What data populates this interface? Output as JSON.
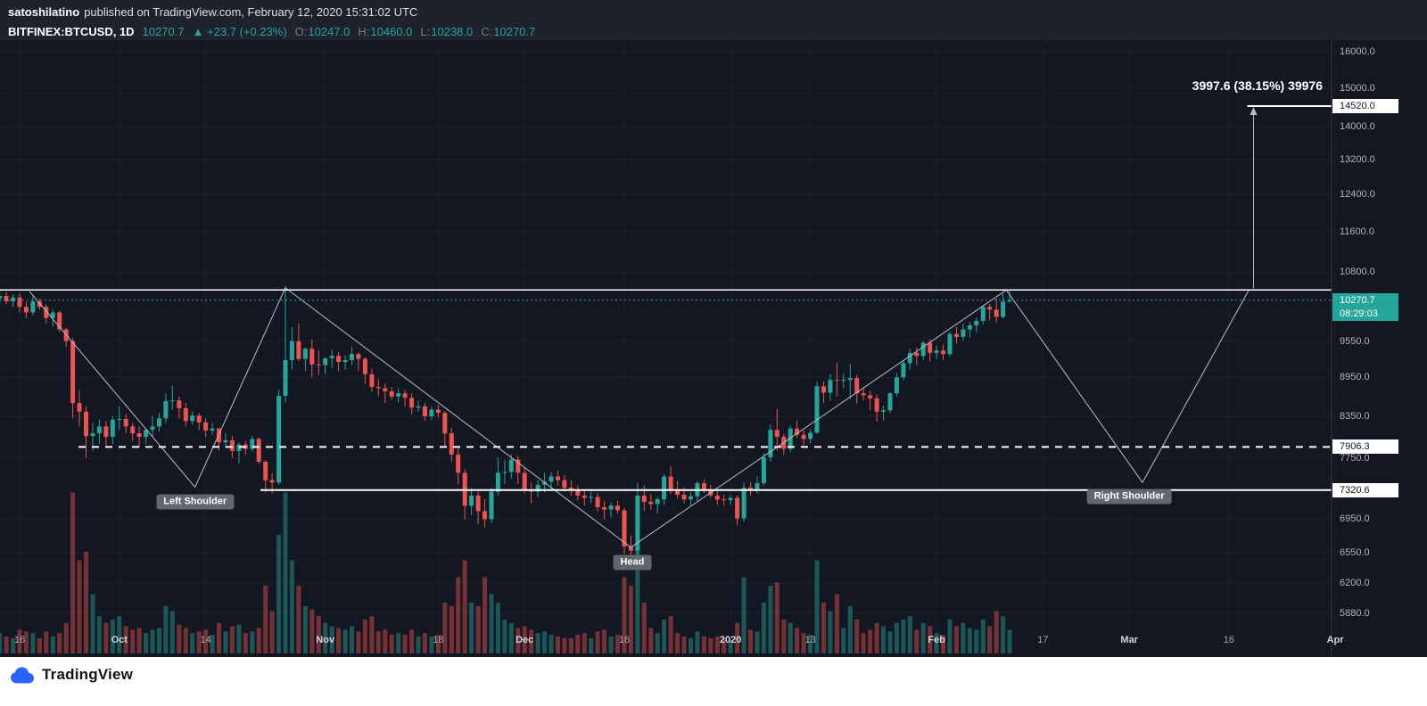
{
  "meta": {
    "publisher": "satoshilatino",
    "published_text": "published on TradingView.com, February 12, 2020 15:31:02 UTC"
  },
  "symbol_bar": {
    "symbol_tf": "BITFINEX:BTCUSD, 1D",
    "last_price": "10270.7",
    "change": "▲ +23.7 (+0.23%)",
    "ohlc": [
      {
        "label": "O:",
        "value": "10247.0"
      },
      {
        "label": "H:",
        "value": "10460.0"
      },
      {
        "label": "L:",
        "value": "10238.0"
      },
      {
        "label": "C:",
        "value": "10270.7"
      }
    ]
  },
  "colors": {
    "bg": "#131722",
    "panel": "#1e222d",
    "up": "#26a69a",
    "down": "#ef5350",
    "up_volume": "rgba(38,166,154,0.45)",
    "down_volume": "rgba(239,83,80,0.45)",
    "white": "#ffffff",
    "trend": "#b8bdc9",
    "grid": "rgba(255,255,255,0.04)",
    "axis_text": "#b2b5be",
    "brand_blue": "#2962ff"
  },
  "price_axis": {
    "ticks": [
      {
        "label": "16000.0",
        "price": 16000
      },
      {
        "label": "15000.0",
        "price": 15000
      },
      {
        "label": "14000.0",
        "price": 14000
      },
      {
        "label": "13200.0",
        "price": 13200
      },
      {
        "label": "12400.0",
        "price": 12400
      },
      {
        "label": "11600.0",
        "price": 11600
      },
      {
        "label": "10800.0",
        "price": 10800
      },
      {
        "label": "9550.0",
        "price": 9550
      },
      {
        "label": "8950.0",
        "price": 8950
      },
      {
        "label": "8350.0",
        "price": 8350
      },
      {
        "label": "7750.0",
        "price": 7750
      },
      {
        "label": "6950.0",
        "price": 6950
      },
      {
        "label": "6550.0",
        "price": 6550
      },
      {
        "label": "6200.0",
        "price": 6200
      },
      {
        "label": "5880.0",
        "price": 5880
      }
    ],
    "special": {
      "target": {
        "label": "14520.0",
        "price": 14520
      },
      "last": {
        "label": "10270.7",
        "price": 10270.7
      },
      "countdown": {
        "label": "08:29:03"
      },
      "pivot": {
        "label": "7906.3",
        "price": 7906.3
      },
      "support": {
        "label": "7320.6",
        "price": 7320.6
      }
    }
  },
  "time_axis": {
    "labels": [
      {
        "text": "16",
        "day": 3
      },
      {
        "text": "Oct",
        "day": 18
      },
      {
        "text": "14",
        "day": 31
      },
      {
        "text": "Nov",
        "day": 49
      },
      {
        "text": "18",
        "day": 66
      },
      {
        "text": "Dec",
        "day": 79
      },
      {
        "text": "16",
        "day": 94
      },
      {
        "text": "2020",
        "day": 110
      },
      {
        "text": "13",
        "day": 122
      },
      {
        "text": "Feb",
        "day": 141
      },
      {
        "text": "17",
        "day": 157
      },
      {
        "text": "Mar",
        "day": 170
      },
      {
        "text": "16",
        "day": 185
      },
      {
        "text": "Apr",
        "day": 201
      }
    ]
  },
  "annotations": {
    "left_shoulder": {
      "text": "Left Shoulder",
      "day": 29.4,
      "price": 7170
    },
    "head": {
      "text": "Head",
      "day": 95.2,
      "price": 6430
    },
    "right_shoulder": {
      "text": "Right Shoulder",
      "day": 170,
      "price": 7240
    },
    "measured_move": "3997.6 (38.15%) 39976",
    "neckline_price": 10460,
    "pivot_price": 7906.3,
    "support_price": 7320.6,
    "target_price": 14520,
    "arrow_day": 188.7,
    "zigzag": [
      {
        "day": 4.5,
        "price": 10430
      },
      {
        "day": 29.4,
        "price": 7360
      },
      {
        "day": 43,
        "price": 10500
      },
      {
        "day": 95,
        "price": 6610
      },
      {
        "day": 151.5,
        "price": 10460
      },
      {
        "day": 172,
        "price": 7420
      },
      {
        "day": 188,
        "price": 10460
      }
    ]
  },
  "chart_data": {
    "type": "candlestick",
    "symbol": "BITFINEX:BTCUSD",
    "interval": "1D",
    "scale": "logarithmic",
    "start_date": "2019-09-13",
    "end_date": "2020-02-12",
    "columns": [
      "open",
      "high",
      "low",
      "close",
      "volume_rel"
    ],
    "price_axis_range": [
      5880,
      16000
    ],
    "candles": [
      [
        10300,
        10450,
        10150,
        10350,
        12
      ],
      [
        10350,
        10420,
        10200,
        10250,
        10
      ],
      [
        10250,
        10380,
        10150,
        10320,
        9
      ],
      [
        10320,
        10400,
        10050,
        10150,
        14
      ],
      [
        10150,
        10250,
        9950,
        10050,
        13
      ],
      [
        10050,
        10350,
        10000,
        10250,
        12
      ],
      [
        10250,
        10300,
        10100,
        10150,
        9
      ],
      [
        10150,
        10200,
        9850,
        9950,
        13
      ],
      [
        9950,
        10100,
        9800,
        10050,
        10
      ],
      [
        10050,
        10080,
        9700,
        9750,
        12
      ],
      [
        9750,
        9780,
        9450,
        9550,
        18
      ],
      [
        9550,
        9600,
        8320,
        8550,
        95
      ],
      [
        8550,
        8750,
        8200,
        8420,
        55
      ],
      [
        8420,
        8500,
        7750,
        8060,
        60
      ],
      [
        8060,
        8250,
        7850,
        8100,
        35
      ],
      [
        8100,
        8300,
        7950,
        8200,
        22
      ],
      [
        8200,
        8280,
        7900,
        8050,
        18
      ],
      [
        8050,
        8350,
        7950,
        8300,
        20
      ],
      [
        8300,
        8500,
        8150,
        8310,
        22
      ],
      [
        8310,
        8390,
        8100,
        8200,
        16
      ],
      [
        8200,
        8250,
        8000,
        8100,
        14
      ],
      [
        8100,
        8200,
        7900,
        8050,
        15
      ],
      [
        8050,
        8170,
        7950,
        8150,
        12
      ],
      [
        8150,
        8350,
        8050,
        8200,
        14
      ],
      [
        8200,
        8400,
        8130,
        8320,
        15
      ],
      [
        8320,
        8700,
        8250,
        8580,
        28
      ],
      [
        8580,
        8820,
        8450,
        8590,
        25
      ],
      [
        8590,
        8650,
        8320,
        8470,
        17
      ],
      [
        8470,
        8550,
        8200,
        8280,
        15
      ],
      [
        8280,
        8420,
        8230,
        8360,
        12
      ],
      [
        8360,
        8400,
        8150,
        8260,
        13
      ],
      [
        8260,
        8320,
        8050,
        8140,
        14
      ],
      [
        8140,
        8250,
        8080,
        8170,
        11
      ],
      [
        8170,
        8180,
        7850,
        7970,
        18
      ],
      [
        7970,
        8100,
        7890,
        8000,
        13
      ],
      [
        8000,
        8060,
        7750,
        7850,
        16
      ],
      [
        7850,
        7970,
        7680,
        7940,
        17
      ],
      [
        7940,
        7990,
        7800,
        7880,
        12
      ],
      [
        7880,
        8060,
        7840,
        8020,
        13
      ],
      [
        8020,
        8040,
        7670,
        7700,
        15
      ],
      [
        7700,
        7720,
        7290,
        7450,
        40
      ],
      [
        7450,
        7540,
        7280,
        7420,
        25
      ],
      [
        7420,
        8750,
        7390,
        8660,
        70
      ],
      [
        8660,
        10540,
        8560,
        9230,
        95
      ],
      [
        9230,
        9790,
        9080,
        9550,
        55
      ],
      [
        9550,
        9850,
        9220,
        9250,
        40
      ],
      [
        9250,
        9440,
        9060,
        9420,
        28
      ],
      [
        9420,
        9580,
        8950,
        9160,
        26
      ],
      [
        9160,
        9390,
        8990,
        9150,
        22
      ],
      [
        9150,
        9280,
        9010,
        9260,
        18
      ],
      [
        9260,
        9400,
        9100,
        9300,
        16
      ],
      [
        9300,
        9370,
        9050,
        9200,
        15
      ],
      [
        9200,
        9310,
        9070,
        9230,
        14
      ],
      [
        9230,
        9450,
        9150,
        9330,
        16
      ],
      [
        9330,
        9360,
        9050,
        9250,
        13
      ],
      [
        9250,
        9280,
        8850,
        9000,
        20
      ],
      [
        9000,
        9090,
        8720,
        8800,
        22
      ],
      [
        8800,
        8920,
        8650,
        8780,
        13
      ],
      [
        8780,
        8850,
        8550,
        8730,
        14
      ],
      [
        8730,
        8800,
        8600,
        8650,
        11
      ],
      [
        8650,
        8780,
        8560,
        8700,
        12
      ],
      [
        8700,
        8750,
        8500,
        8630,
        11
      ],
      [
        8630,
        8700,
        8380,
        8480,
        14
      ],
      [
        8480,
        8590,
        8420,
        8500,
        10
      ],
      [
        8500,
        8550,
        8280,
        8350,
        12
      ],
      [
        8350,
        8500,
        8300,
        8450,
        10
      ],
      [
        8450,
        8520,
        8330,
        8400,
        11
      ],
      [
        8400,
        8430,
        7900,
        8100,
        30
      ],
      [
        8100,
        8180,
        7700,
        7800,
        28
      ],
      [
        7800,
        7900,
        7400,
        7550,
        45
      ],
      [
        7550,
        7600,
        6950,
        7120,
        55
      ],
      [
        7120,
        7350,
        7000,
        7250,
        30
      ],
      [
        7250,
        7300,
        6890,
        7050,
        28
      ],
      [
        7050,
        7200,
        6850,
        6950,
        45
      ],
      [
        6950,
        7350,
        6900,
        7300,
        35
      ],
      [
        7300,
        7760,
        7250,
        7550,
        30
      ],
      [
        7550,
        7720,
        7400,
        7560,
        20
      ],
      [
        7560,
        7800,
        7470,
        7730,
        18
      ],
      [
        7730,
        7780,
        7400,
        7550,
        15
      ],
      [
        7550,
        7620,
        7280,
        7320,
        16
      ],
      [
        7320,
        7420,
        7150,
        7300,
        14
      ],
      [
        7300,
        7450,
        7230,
        7390,
        12
      ],
      [
        7390,
        7550,
        7290,
        7430,
        13
      ],
      [
        7430,
        7560,
        7330,
        7500,
        11
      ],
      [
        7500,
        7580,
        7380,
        7450,
        10
      ],
      [
        7450,
        7520,
        7300,
        7350,
        9
      ],
      [
        7350,
        7450,
        7250,
        7320,
        9
      ],
      [
        7320,
        7380,
        7190,
        7250,
        11
      ],
      [
        7250,
        7330,
        7120,
        7220,
        12
      ],
      [
        7220,
        7300,
        7150,
        7230,
        9
      ],
      [
        7230,
        7280,
        7050,
        7100,
        13
      ],
      [
        7100,
        7180,
        6950,
        7070,
        14
      ],
      [
        7070,
        7160,
        6970,
        7120,
        10
      ],
      [
        7120,
        7180,
        7020,
        7060,
        11
      ],
      [
        7060,
        7090,
        6530,
        6620,
        45
      ],
      [
        6620,
        6750,
        6410,
        6570,
        40
      ],
      [
        6570,
        7420,
        6435,
        7250,
        65
      ],
      [
        7250,
        7380,
        7050,
        7170,
        30
      ],
      [
        7170,
        7270,
        7070,
        7140,
        15
      ],
      [
        7140,
        7230,
        7020,
        7200,
        12
      ],
      [
        7200,
        7530,
        7130,
        7500,
        20
      ],
      [
        7500,
        7640,
        7270,
        7320,
        22
      ],
      [
        7320,
        7440,
        7210,
        7260,
        12
      ],
      [
        7260,
        7350,
        7150,
        7200,
        10
      ],
      [
        7200,
        7290,
        7120,
        7240,
        9
      ],
      [
        7240,
        7440,
        7180,
        7410,
        13
      ],
      [
        7410,
        7460,
        7280,
        7320,
        10
      ],
      [
        7320,
        7390,
        7220,
        7250,
        9
      ],
      [
        7250,
        7310,
        7130,
        7200,
        10
      ],
      [
        7200,
        7260,
        7120,
        7190,
        9
      ],
      [
        7190,
        7260,
        7130,
        7220,
        8
      ],
      [
        7220,
        7250,
        6870,
        6960,
        18
      ],
      [
        6960,
        7420,
        6920,
        7350,
        45
      ],
      [
        7350,
        7420,
        7250,
        7330,
        14
      ],
      [
        7330,
        7500,
        7280,
        7410,
        13
      ],
      [
        7410,
        7820,
        7380,
        7760,
        30
      ],
      [
        7760,
        8230,
        7700,
        8150,
        40
      ],
      [
        8150,
        8460,
        7850,
        8050,
        42
      ],
      [
        8050,
        8090,
        7800,
        7880,
        20
      ],
      [
        7880,
        8210,
        7830,
        8170,
        18
      ],
      [
        8170,
        8290,
        8030,
        8080,
        15
      ],
      [
        8080,
        8150,
        7930,
        8020,
        12
      ],
      [
        8020,
        8160,
        7960,
        8110,
        11
      ],
      [
        8110,
        8880,
        8090,
        8810,
        55
      ],
      [
        8810,
        8890,
        8550,
        8710,
        30
      ],
      [
        8710,
        9000,
        8590,
        8910,
        25
      ],
      [
        8910,
        9190,
        8650,
        8900,
        35
      ],
      [
        8900,
        9010,
        8780,
        8910,
        15
      ],
      [
        8910,
        9170,
        8610,
        8940,
        28
      ],
      [
        8940,
        8990,
        8540,
        8700,
        20
      ],
      [
        8700,
        8790,
        8590,
        8670,
        12
      ],
      [
        8670,
        8740,
        8440,
        8620,
        14
      ],
      [
        8620,
        8680,
        8270,
        8420,
        18
      ],
      [
        8420,
        8510,
        8290,
        8440,
        16
      ],
      [
        8440,
        8720,
        8400,
        8700,
        13
      ],
      [
        8700,
        9020,
        8650,
        8950,
        18
      ],
      [
        8950,
        9230,
        8900,
        9180,
        20
      ],
      [
        9180,
        9420,
        9080,
        9350,
        22
      ],
      [
        9350,
        9440,
        9150,
        9300,
        14
      ],
      [
        9300,
        9550,
        9230,
        9520,
        18
      ],
      [
        9520,
        9580,
        9210,
        9350,
        16
      ],
      [
        9350,
        9470,
        9250,
        9390,
        12
      ],
      [
        9390,
        9490,
        9230,
        9330,
        11
      ],
      [
        9330,
        9710,
        9290,
        9670,
        20
      ],
      [
        9670,
        9790,
        9510,
        9620,
        16
      ],
      [
        9620,
        9850,
        9560,
        9750,
        18
      ],
      [
        9750,
        9880,
        9610,
        9820,
        15
      ],
      [
        9820,
        9960,
        9700,
        9900,
        14
      ],
      [
        9900,
        10180,
        9840,
        10150,
        20
      ],
      [
        10150,
        10200,
        9910,
        10100,
        16
      ],
      [
        10100,
        10300,
        9870,
        9970,
        25
      ],
      [
        9970,
        10390,
        9940,
        10247,
        22
      ],
      [
        10247,
        10460,
        10238,
        10270.7,
        14
      ]
    ]
  },
  "footer": {
    "brand": "TradingView"
  }
}
